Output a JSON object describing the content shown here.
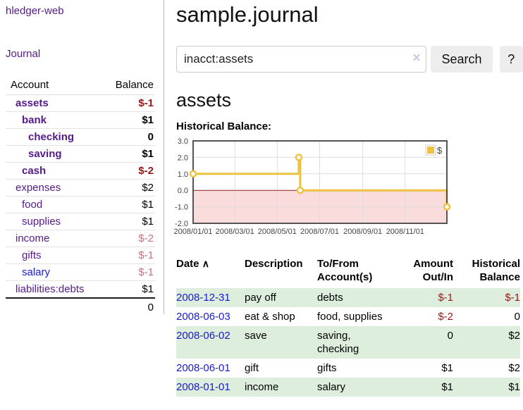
{
  "app": {
    "title": "hledger-web"
  },
  "sidebar": {
    "journal_label": "Journal",
    "table": {
      "account_header": "Account",
      "balance_header": "Balance"
    },
    "accounts": [
      {
        "name": "assets",
        "balance": "$-1",
        "depth": 1,
        "bold": true,
        "neg": "strong"
      },
      {
        "name": "bank",
        "balance": "$1",
        "depth": 2,
        "bold": true,
        "neg": "none"
      },
      {
        "name": "checking",
        "balance": "0",
        "depth": 3,
        "bold": true,
        "neg": "none"
      },
      {
        "name": "saving",
        "balance": "$1",
        "depth": 3,
        "bold": true,
        "neg": "none"
      },
      {
        "name": "cash",
        "balance": "$-2",
        "depth": 2,
        "bold": true,
        "neg": "strong"
      },
      {
        "name": "expenses",
        "balance": "$2",
        "depth": 1,
        "bold": false,
        "neg": "none"
      },
      {
        "name": "food",
        "balance": "$1",
        "depth": 2,
        "bold": false,
        "neg": "none"
      },
      {
        "name": "supplies",
        "balance": "$1",
        "depth": 2,
        "bold": false,
        "neg": "none"
      },
      {
        "name": "income",
        "balance": "$-2",
        "depth": 1,
        "bold": false,
        "neg": "soft"
      },
      {
        "name": "gifts",
        "balance": "$-1",
        "depth": 2,
        "bold": false,
        "neg": "soft"
      },
      {
        "name": "salary",
        "balance": "$-1",
        "depth": 2,
        "bold": false,
        "neg": "soft",
        "unvisited": true
      },
      {
        "name": "liabilities:debts",
        "balance": "$1",
        "depth": 1,
        "bold": false,
        "neg": "none"
      }
    ],
    "total": {
      "balance": "0"
    }
  },
  "header": {
    "title": "sample.journal"
  },
  "search": {
    "value": "inacct:assets",
    "clear_icon": "×",
    "button_label": "Search",
    "help_label": "?"
  },
  "account_page": {
    "heading": "assets",
    "chart_label": "Historical Balance:"
  },
  "chart_data": {
    "type": "line",
    "steps": true,
    "title": "Historical Balance",
    "series": [
      {
        "name": "$",
        "color": "#edc240",
        "points": [
          [
            "2008-01-01",
            1
          ],
          [
            "2008-06-01",
            2
          ],
          [
            "2008-06-03",
            0
          ],
          [
            "2008-12-31",
            -1
          ]
        ]
      }
    ],
    "x_ticks": [
      "2008/01/01",
      "2008/03/01",
      "2008/05/01",
      "2008/07/01",
      "2008/09/01",
      "2008/11/01"
    ],
    "y_ticks": [
      3.0,
      2.0,
      1.0,
      0.0,
      -1.0,
      -2.0
    ],
    "xlim": [
      "2008-01-01",
      "2008-12-31"
    ],
    "ylim": [
      -2,
      3
    ],
    "grid": true,
    "legend": {
      "label": "$",
      "position": "top-right"
    },
    "negative_region_color": "#fbdcdc",
    "zero_line_color": "#8b2020",
    "grid_color": "#dcdcdc",
    "border_color": "#545454"
  },
  "register": {
    "headers": {
      "date": "Date",
      "sort_icon": "∧",
      "description": "Description",
      "account": "To/From Account(s)",
      "amount": "Amount Out/In",
      "balance": "Historical Balance"
    },
    "rows": [
      {
        "date": "2008-12-31",
        "description": "pay off",
        "account": "debts",
        "amount": "$-1",
        "balance": "$-1",
        "amount_neg": true,
        "balance_neg": true
      },
      {
        "date": "2008-06-03",
        "description": "eat & shop",
        "account": "food, supplies",
        "amount": "$-2",
        "balance": "0",
        "amount_neg": true,
        "balance_neg": false
      },
      {
        "date": "2008-06-02",
        "description": "save",
        "account": "saving, checking",
        "amount": "0",
        "balance": "$2",
        "amount_neg": false,
        "balance_neg": false
      },
      {
        "date": "2008-06-01",
        "description": "gift",
        "account": "gifts",
        "amount": "$1",
        "balance": "$2",
        "amount_neg": false,
        "balance_neg": false
      },
      {
        "date": "2008-01-01",
        "description": "income",
        "account": "salary",
        "amount": "$1",
        "balance": "$1",
        "amount_neg": false,
        "balance_neg": false
      }
    ]
  }
}
